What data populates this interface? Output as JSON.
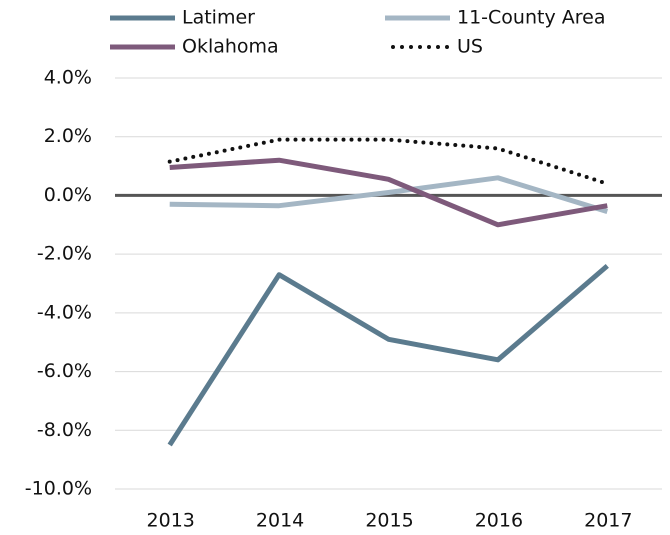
{
  "chart_data": {
    "type": "line",
    "categories": [
      "2013",
      "2014",
      "2015",
      "2016",
      "2017"
    ],
    "series": [
      {
        "name": "Latimer",
        "color": "#5b7b8e",
        "values": [
          -8.5,
          -2.7,
          -4.9,
          -5.6,
          -2.4
        ]
      },
      {
        "name": "11-County Area",
        "color": "#a4b6c4",
        "values": [
          -0.3,
          -0.35,
          0.1,
          0.6,
          -0.55
        ]
      },
      {
        "name": "Oklahoma",
        "color": "#7e5a7b",
        "values": [
          0.95,
          1.2,
          0.55,
          -1.0,
          -0.35
        ]
      },
      {
        "name": "US",
        "color": "#111111",
        "dash": "dotted",
        "values": [
          1.15,
          1.9,
          1.9,
          1.6,
          0.4
        ]
      }
    ],
    "ylim": [
      -10,
      4
    ],
    "yticks": [
      {
        "value": -10,
        "label": "-10.0%"
      },
      {
        "value": -8,
        "label": "-8.0%"
      },
      {
        "value": -6,
        "label": "-6.0%"
      },
      {
        "value": -4,
        "label": "-4.0%"
      },
      {
        "value": -2,
        "label": "-2.0%"
      },
      {
        "value": 0,
        "label": "0.0%"
      },
      {
        "value": 2,
        "label": "2.0%"
      },
      {
        "value": 4,
        "label": "4.0%"
      }
    ],
    "grid": true,
    "legend": "top"
  }
}
